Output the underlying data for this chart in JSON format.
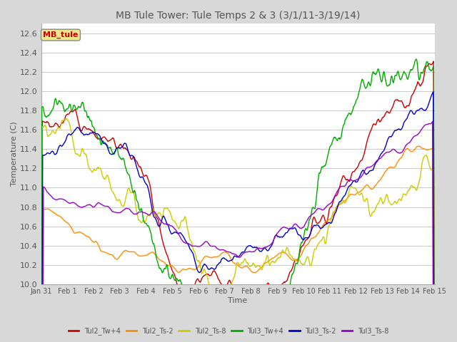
{
  "title": "MB Tule Tower: Tule Temps 2 & 3 (3/1/11-3/19/14)",
  "xlabel": "Time",
  "ylabel": "Temperature (C)",
  "ylim": [
    10.0,
    12.7
  ],
  "yticks": [
    10.0,
    10.2,
    10.4,
    10.6,
    10.8,
    11.0,
    11.2,
    11.4,
    11.6,
    11.8,
    12.0,
    12.2,
    12.4,
    12.6
  ],
  "xtick_labels": [
    "Jan 31",
    "Feb 1",
    "Feb 2",
    "Feb 3",
    "Feb 4",
    "Feb 5",
    "Feb 6",
    "Feb 7",
    "Feb 8",
    "Feb 9",
    "Feb 10",
    "Feb 11",
    "Feb 12",
    "Feb 13",
    "Feb 14",
    "Feb 15"
  ],
  "legend_box_color": "#f0e68c",
  "legend_box_text": "MB_tule",
  "legend_box_text_color": "#cc0000",
  "series": [
    {
      "name": "Tul2_Tw+4",
      "color": "#cc0000",
      "lw": 1.0
    },
    {
      "name": "Tul2_Ts-2",
      "color": "#ff8c00",
      "lw": 1.0
    },
    {
      "name": "Tul2_Ts-8",
      "color": "#cccc00",
      "lw": 1.0
    },
    {
      "name": "Tul3_Tw+4",
      "color": "#00aa00",
      "lw": 1.0
    },
    {
      "name": "Tul3_Ts-2",
      "color": "#0000cc",
      "lw": 1.0
    },
    {
      "name": "Tul3_Ts-8",
      "color": "#9900cc",
      "lw": 1.0
    }
  ],
  "outer_bg": "#d8d8d8",
  "plot_bg": "#ffffff",
  "grid_color": "#cccccc",
  "title_fontsize": 10,
  "label_fontsize": 8,
  "tick_fontsize": 8
}
